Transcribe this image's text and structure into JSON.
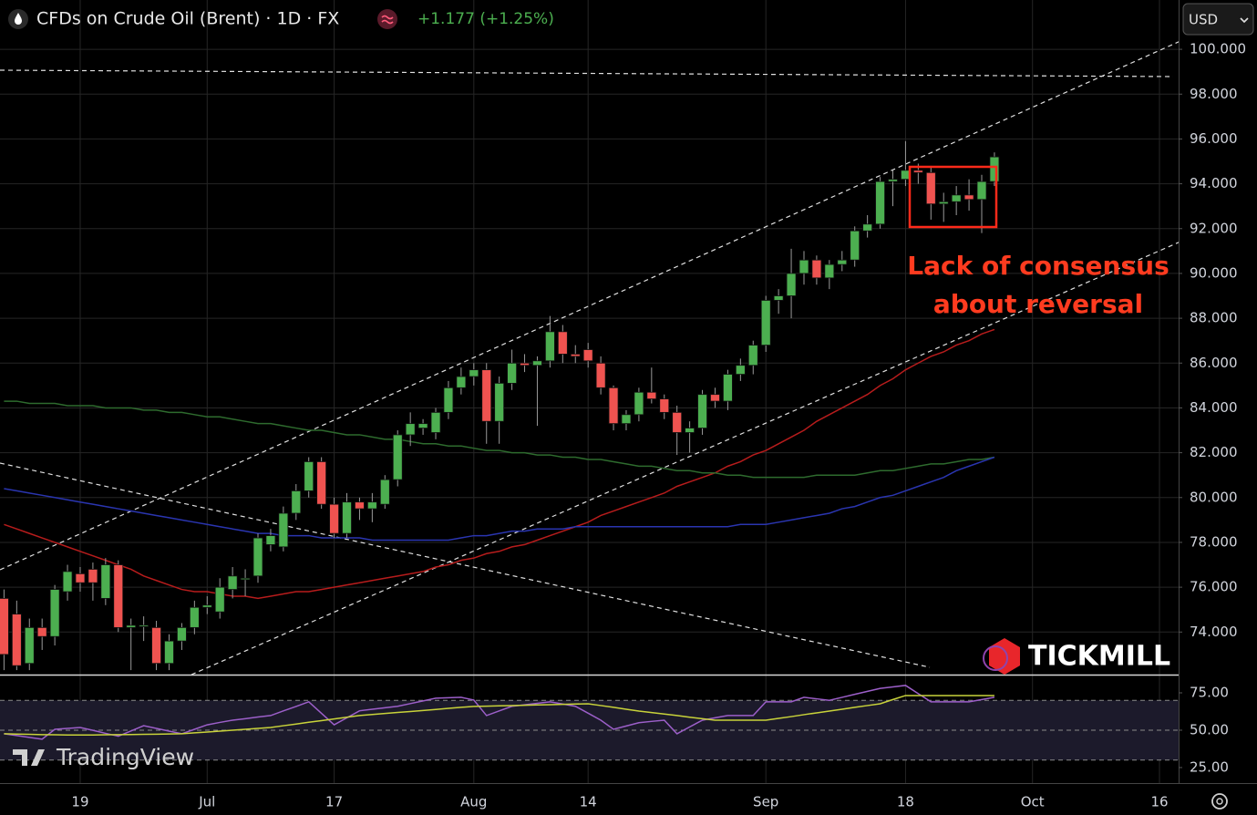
{
  "header": {
    "title": "CFDs on Crude Oil (Brent) · 1D · FX",
    "change": "+1.177 (+1.25%)",
    "currency": "USD"
  },
  "annotation": [
    "Lack of consensus",
    "about reversal"
  ],
  "branding": {
    "broker": "TICKMILL",
    "platform": "TradingView"
  },
  "chart_data": [
    {
      "type": "candlestick",
      "categories": [
        null,
        null,
        null,
        null,
        null,
        null,
        "19",
        null,
        null,
        null,
        null,
        null,
        null,
        null,
        null,
        null,
        "Jul",
        null,
        null,
        null,
        null,
        null,
        null,
        null,
        null,
        null,
        "17",
        null,
        null,
        null,
        null,
        null,
        null,
        null,
        null,
        null,
        null,
        "Aug",
        null,
        null,
        null,
        null,
        null,
        null,
        null,
        null,
        "14",
        null,
        null,
        null,
        null,
        null,
        null,
        null,
        null,
        null,
        null,
        null,
        null,
        null,
        "Sep",
        null,
        null,
        null,
        null,
        null,
        null,
        null,
        null,
        null,
        null,
        "18",
        null,
        null,
        null,
        null,
        null,
        null,
        null,
        null,
        null,
        "Oct",
        null,
        null,
        null,
        null,
        null,
        null,
        null,
        null,
        null,
        "16"
      ],
      "open": [
        75.5,
        74.8,
        72.6,
        74.2,
        73.8,
        75.8,
        76.6,
        76.8,
        75.5,
        77.0,
        74.2,
        74.3,
        74.2,
        72.6,
        73.6,
        74.2,
        75.1,
        74.9,
        75.9,
        76.4,
        76.5,
        77.9,
        77.8,
        79.3,
        80.3,
        81.6,
        79.7,
        78.4,
        79.8,
        79.5,
        79.7,
        80.8,
        82.8,
        83.1,
        82.9,
        83.8,
        84.9,
        85.4,
        85.7,
        83.4,
        85.1,
        86.0,
        85.9,
        86.1,
        87.4,
        86.4,
        86.6,
        86.0,
        84.9,
        83.3,
        83.7,
        84.7,
        84.4,
        83.8,
        82.9,
        83.1,
        84.6,
        84.3,
        85.5,
        85.9,
        86.8,
        88.8,
        89.0,
        90.0,
        90.6,
        89.8,
        90.4,
        90.6,
        91.9,
        92.2,
        94.1,
        94.2,
        94.6,
        94.5,
        93.1,
        93.2,
        93.5,
        93.3,
        94.1,
        null,
        null,
        null,
        null,
        null,
        null,
        null,
        null,
        null,
        null,
        null,
        null,
        null
      ],
      "high": [
        75.9,
        75.4,
        74.6,
        74.6,
        76.1,
        77.0,
        76.9,
        77.1,
        77.3,
        77.2,
        74.6,
        74.7,
        74.5,
        73.9,
        74.4,
        75.4,
        75.6,
        76.4,
        76.9,
        76.8,
        78.4,
        78.6,
        79.6,
        80.6,
        81.8,
        81.8,
        80.0,
        80.2,
        80.0,
        80.2,
        81.0,
        83.0,
        83.8,
        83.5,
        84.0,
        85.2,
        85.8,
        86.0,
        86.0,
        85.4,
        86.6,
        86.4,
        86.3,
        88.1,
        87.7,
        86.8,
        86.9,
        86.3,
        85.0,
        83.9,
        84.9,
        85.8,
        84.6,
        84.1,
        83.4,
        84.8,
        84.9,
        85.7,
        86.2,
        87.0,
        89.0,
        89.3,
        91.1,
        91.0,
        90.8,
        90.6,
        91.0,
        92.1,
        92.6,
        94.3,
        94.6,
        95.9,
        94.9,
        94.8,
        93.6,
        93.9,
        94.2,
        94.4,
        95.4,
        null,
        null,
        null,
        null,
        null,
        null,
        null,
        null,
        null,
        null,
        null,
        null,
        null
      ],
      "low": [
        72.3,
        72.3,
        72.3,
        73.2,
        73.4,
        75.4,
        75.8,
        75.4,
        75.2,
        74.0,
        72.3,
        73.6,
        72.3,
        72.3,
        73.2,
        73.9,
        74.8,
        74.6,
        75.5,
        75.6,
        76.2,
        77.6,
        77.6,
        79.0,
        80.0,
        79.5,
        78.2,
        78.2,
        79.0,
        78.9,
        79.5,
        80.5,
        82.3,
        82.8,
        82.6,
        83.5,
        84.6,
        85.0,
        82.4,
        82.4,
        84.8,
        85.6,
        83.2,
        85.8,
        86.0,
        86.0,
        85.8,
        84.6,
        83.0,
        83.0,
        83.4,
        84.2,
        83.5,
        81.9,
        82.0,
        82.8,
        84.0,
        83.9,
        85.2,
        85.5,
        86.5,
        88.2,
        88.0,
        89.5,
        89.5,
        89.3,
        90.1,
        90.3,
        91.6,
        92.0,
        93.0,
        93.9,
        94.0,
        92.4,
        92.3,
        92.6,
        92.8,
        91.8,
        93.9,
        null,
        null,
        null,
        null,
        null,
        null,
        null,
        null,
        null,
        null,
        null,
        null,
        null
      ],
      "close": [
        73.0,
        72.5,
        74.2,
        73.8,
        75.9,
        76.7,
        76.2,
        76.2,
        77.0,
        74.2,
        74.3,
        74.3,
        72.6,
        73.6,
        74.2,
        75.1,
        75.2,
        76.0,
        76.5,
        76.4,
        78.2,
        78.3,
        79.3,
        80.3,
        81.6,
        79.7,
        78.4,
        79.8,
        79.5,
        79.8,
        80.8,
        82.8,
        83.3,
        83.3,
        83.8,
        84.9,
        85.4,
        85.7,
        83.4,
        85.1,
        86.0,
        85.9,
        86.1,
        87.4,
        86.4,
        86.3,
        86.1,
        84.9,
        83.3,
        83.7,
        84.7,
        84.4,
        83.8,
        82.9,
        83.1,
        84.6,
        84.3,
        85.5,
        85.9,
        86.8,
        88.8,
        89.0,
        90.0,
        90.6,
        89.8,
        90.4,
        90.6,
        91.9,
        92.2,
        94.1,
        94.2,
        94.6,
        94.5,
        93.1,
        93.2,
        93.5,
        93.3,
        94.1,
        95.2,
        null,
        null,
        null,
        null,
        null,
        null,
        null,
        null,
        null,
        null,
        null,
        null,
        null
      ],
      "up_color": "#4caf50",
      "down_color": "#ef5350",
      "series": [
        {
          "color": "#b71c1c",
          "values": [
            78.8,
            78.6,
            78.4,
            78.2,
            78.0,
            77.8,
            77.6,
            77.4,
            77.2,
            77.0,
            76.8,
            76.5,
            76.3,
            76.1,
            75.9,
            75.8,
            75.8,
            75.7,
            75.6,
            75.6,
            75.5,
            75.6,
            75.7,
            75.8,
            75.8,
            75.9,
            76.0,
            76.1,
            76.2,
            76.3,
            76.4,
            76.5,
            76.6,
            76.7,
            76.9,
            77.0,
            77.2,
            77.3,
            77.5,
            77.6,
            77.8,
            77.9,
            78.1,
            78.3,
            78.5,
            78.7,
            78.9,
            79.2,
            79.4,
            79.6,
            79.8,
            80.0,
            80.2,
            80.5,
            80.7,
            80.9,
            81.1,
            81.4,
            81.6,
            81.9,
            82.1,
            82.4,
            82.7,
            83.0,
            83.4,
            83.7,
            84.0,
            84.3,
            84.6,
            85.0,
            85.3,
            85.7,
            86.0,
            86.3,
            86.5,
            86.8,
            87.0,
            87.3,
            87.5,
            null,
            null,
            null,
            null,
            null,
            null,
            null,
            null,
            null,
            null,
            null,
            null,
            null
          ]
        },
        {
          "color": "#2e6b2e",
          "values": [
            84.3,
            84.3,
            84.2,
            84.2,
            84.2,
            84.1,
            84.1,
            84.1,
            84.0,
            84.0,
            84.0,
            83.9,
            83.9,
            83.8,
            83.8,
            83.7,
            83.6,
            83.6,
            83.5,
            83.4,
            83.3,
            83.3,
            83.2,
            83.1,
            83.0,
            83.0,
            82.9,
            82.8,
            82.8,
            82.7,
            82.6,
            82.6,
            82.5,
            82.4,
            82.4,
            82.3,
            82.3,
            82.2,
            82.1,
            82.1,
            82.0,
            82.0,
            81.9,
            81.9,
            81.8,
            81.8,
            81.7,
            81.7,
            81.6,
            81.5,
            81.4,
            81.4,
            81.3,
            81.2,
            81.2,
            81.1,
            81.1,
            81.0,
            81.0,
            80.9,
            80.9,
            80.9,
            80.9,
            80.9,
            81.0,
            81.0,
            81.0,
            81.0,
            81.1,
            81.2,
            81.2,
            81.3,
            81.4,
            81.5,
            81.5,
            81.6,
            81.7,
            81.7,
            81.8,
            null,
            null,
            null,
            null,
            null,
            null,
            null,
            null,
            null,
            null,
            null,
            null,
            null
          ]
        },
        {
          "color": "#2a35b0",
          "values": [
            80.4,
            80.3,
            80.2,
            80.1,
            80.0,
            79.9,
            79.8,
            79.7,
            79.6,
            79.5,
            79.4,
            79.3,
            79.2,
            79.1,
            79.0,
            78.9,
            78.8,
            78.7,
            78.6,
            78.5,
            78.4,
            78.4,
            78.3,
            78.3,
            78.3,
            78.2,
            78.2,
            78.2,
            78.2,
            78.1,
            78.1,
            78.1,
            78.1,
            78.1,
            78.1,
            78.1,
            78.2,
            78.3,
            78.3,
            78.4,
            78.5,
            78.5,
            78.6,
            78.6,
            78.6,
            78.7,
            78.7,
            78.7,
            78.7,
            78.7,
            78.7,
            78.7,
            78.7,
            78.7,
            78.7,
            78.7,
            78.7,
            78.7,
            78.8,
            78.8,
            78.8,
            78.9,
            79.0,
            79.1,
            79.2,
            79.3,
            79.5,
            79.6,
            79.8,
            80.0,
            80.1,
            80.3,
            80.5,
            80.7,
            80.9,
            81.2,
            81.4,
            81.6,
            81.8,
            null,
            null,
            null,
            null,
            null,
            null,
            null,
            null,
            null,
            null,
            null,
            null,
            null
          ]
        }
      ],
      "ylim": [
        72.1,
        102.2
      ],
      "yticks": [
        {
          "value": 74,
          "label": "74.000"
        },
        {
          "value": 76,
          "label": "76.000"
        },
        {
          "value": 78,
          "label": "78.000"
        },
        {
          "value": 80,
          "label": "80.000"
        },
        {
          "value": 82,
          "label": "82.000"
        },
        {
          "value": 84,
          "label": "84.000"
        },
        {
          "value": 86,
          "label": "86.000"
        },
        {
          "value": 88,
          "label": "88.000"
        },
        {
          "value": 90,
          "label": "90.000"
        },
        {
          "value": 92,
          "label": "92.000"
        },
        {
          "value": 94,
          "label": "94.000"
        },
        {
          "value": 96,
          "label": "96.000"
        },
        {
          "value": 98,
          "label": "98.000"
        },
        {
          "value": 100,
          "label": "100.000"
        }
      ],
      "grid": true
    },
    {
      "type": "line",
      "series": [
        {
          "color": "#9c5fc9",
          "values": [
            47.6,
            46.4,
            45.2,
            44.0,
            50.6,
            51.2,
            51.8,
            49.9,
            47.9,
            46.0,
            49.5,
            53.0,
            51.2,
            49.4,
            47.6,
            50.6,
            53.6,
            55.2,
            56.7,
            57.7,
            58.8,
            59.8,
            62.9,
            65.9,
            69.0,
            61.3,
            53.6,
            58.3,
            63.0,
            64.0,
            65.0,
            66.0,
            67.8,
            69.6,
            71.4,
            71.7,
            72.0,
            70.2,
            59.8,
            62.9,
            66.0,
            67.0,
            68.0,
            69.0,
            67.5,
            66.0,
            61.4,
            56.7,
            50.6,
            52.8,
            55.0,
            55.9,
            56.7,
            47.6,
            52.2,
            56.7,
            58.3,
            59.8,
            59.8,
            59.8,
            69.0,
            69.0,
            69.0,
            72.0,
            71.0,
            70.0,
            72.0,
            74.0,
            76.0,
            78.0,
            79.0,
            80.0,
            74.5,
            69.0,
            69.0,
            69.0,
            69.0,
            70.5,
            72.0
          ]
        },
        {
          "color": "#c8d23a",
          "values": [
            47.6,
            47.4,
            47.2,
            47.0,
            46.9,
            46.8,
            46.8,
            46.8,
            46.9,
            47.0,
            47.1,
            47.2,
            47.3,
            47.5,
            47.6,
            48.2,
            48.8,
            49.4,
            50.0,
            50.6,
            51.2,
            51.8,
            53.0,
            54.1,
            55.3,
            56.4,
            57.5,
            58.7,
            59.8,
            60.5,
            61.2,
            61.9,
            62.5,
            63.2,
            63.9,
            64.6,
            65.3,
            65.9,
            66.1,
            66.3,
            66.5,
            66.7,
            66.9,
            67.1,
            67.3,
            67.5,
            67.7,
            66.5,
            65.3,
            64.0,
            62.8,
            61.8,
            60.8,
            59.8,
            58.7,
            57.7,
            56.7,
            56.7,
            56.7,
            56.7,
            56.7,
            57.9,
            59.1,
            60.4,
            61.6,
            62.8,
            64.0,
            65.3,
            66.5,
            67.7,
            70.5,
            73.2,
            73.2,
            73.2,
            73.2,
            73.2,
            73.2,
            73.2,
            73.2
          ]
        }
      ],
      "ylim": [
        15.2,
        86.6
      ],
      "yticks": [
        {
          "value": 25,
          "label": "25.00"
        },
        {
          "value": 50,
          "label": "50.00"
        },
        {
          "value": 75,
          "label": "75.00"
        }
      ],
      "levels": [
        30,
        50,
        70
      ]
    }
  ]
}
